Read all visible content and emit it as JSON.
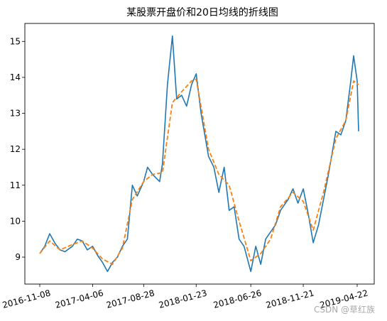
{
  "chart_data": {
    "type": "line",
    "title": "某股票开盘价和20日均线的折线图",
    "xlabel": "",
    "ylabel": "",
    "x_tick_labels": [
      "2016-11-08",
      "2017-04-06",
      "2017-08-28",
      "2018-01-23",
      "2018-06-26",
      "2018-11-21",
      "2019-04-22"
    ],
    "y_ticks": [
      9,
      10,
      11,
      12,
      13,
      14,
      15
    ],
    "ylim": [
      8.25,
      15.5
    ],
    "grid": false,
    "legend": "none",
    "series": [
      {
        "role": "open",
        "color": "#1f77b4",
        "style": "solid",
        "x": [
          "2016-11-08",
          "2016-11-22",
          "2016-12-06",
          "2016-12-20",
          "2017-01-04",
          "2017-01-18",
          "2017-02-08",
          "2017-02-22",
          "2017-03-08",
          "2017-03-22",
          "2017-04-06",
          "2017-04-20",
          "2017-05-04",
          "2017-05-18",
          "2017-06-01",
          "2017-06-15",
          "2017-06-29",
          "2017-07-13",
          "2017-07-27",
          "2017-08-10",
          "2017-08-28",
          "2017-09-08",
          "2017-09-22",
          "2017-10-12",
          "2017-10-20",
          "2017-11-03",
          "2017-11-17",
          "2017-11-29",
          "2017-12-13",
          "2017-12-27",
          "2018-01-10",
          "2018-01-23",
          "2018-02-06",
          "2018-02-27",
          "2018-03-14",
          "2018-03-28",
          "2018-04-12",
          "2018-04-26",
          "2018-05-10",
          "2018-05-24",
          "2018-06-07",
          "2018-06-26",
          "2018-07-10",
          "2018-07-24",
          "2018-08-07",
          "2018-08-21",
          "2018-09-04",
          "2018-09-18",
          "2018-10-09",
          "2018-10-23",
          "2018-11-06",
          "2018-11-21",
          "2018-12-05",
          "2018-12-19",
          "2019-01-03",
          "2019-01-17",
          "2019-01-31",
          "2019-02-21",
          "2019-03-07",
          "2019-03-21",
          "2019-04-04",
          "2019-04-12",
          "2019-04-22",
          "2019-04-26"
        ],
        "y": [
          9.1,
          9.3,
          9.65,
          9.4,
          9.2,
          9.15,
          9.3,
          9.5,
          9.45,
          9.2,
          9.3,
          9.05,
          8.85,
          8.6,
          8.85,
          9.0,
          9.3,
          9.5,
          11.0,
          10.7,
          11.1,
          11.5,
          11.3,
          11.1,
          11.6,
          13.8,
          15.15,
          13.4,
          13.5,
          13.2,
          13.8,
          14.1,
          13.0,
          11.8,
          11.5,
          10.8,
          11.5,
          10.3,
          10.4,
          9.5,
          9.3,
          8.6,
          9.3,
          8.8,
          9.5,
          9.7,
          9.9,
          10.3,
          10.6,
          10.9,
          10.5,
          10.9,
          10.2,
          9.4,
          9.9,
          10.6,
          11.3,
          12.5,
          12.4,
          12.8,
          13.9,
          14.6,
          13.9,
          12.5
        ]
      },
      {
        "role": "ma20",
        "color": "#ff7f0e",
        "style": "dashed",
        "x": [
          "2016-11-08",
          "2016-12-06",
          "2017-01-04",
          "2017-02-08",
          "2017-03-08",
          "2017-04-06",
          "2017-05-04",
          "2017-06-01",
          "2017-06-29",
          "2017-07-27",
          "2017-08-28",
          "2017-09-22",
          "2017-10-20",
          "2017-11-17",
          "2017-12-13",
          "2018-01-10",
          "2018-01-23",
          "2018-02-27",
          "2018-03-28",
          "2018-04-26",
          "2018-05-24",
          "2018-06-26",
          "2018-07-24",
          "2018-08-21",
          "2018-09-18",
          "2018-10-23",
          "2018-11-21",
          "2018-12-19",
          "2019-01-17",
          "2019-02-21",
          "2019-03-21",
          "2019-04-12",
          "2019-04-26"
        ],
        "y": [
          9.1,
          9.45,
          9.2,
          9.35,
          9.45,
          9.25,
          8.95,
          8.8,
          9.25,
          10.6,
          11.1,
          11.3,
          11.35,
          13.3,
          13.6,
          13.9,
          13.95,
          12.0,
          11.3,
          11.0,
          10.0,
          8.9,
          9.1,
          9.5,
          10.4,
          10.8,
          10.55,
          9.75,
          10.8,
          12.3,
          12.8,
          13.9,
          13.8
        ]
      }
    ]
  },
  "watermark": "CSDN @草红族"
}
